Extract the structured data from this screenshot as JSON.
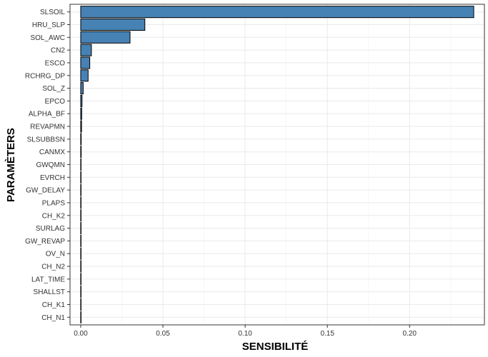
{
  "chart_data": {
    "type": "bar",
    "orientation": "horizontal",
    "title": "",
    "xlabel": "SENSIBILITÉ",
    "ylabel": "PARAMÈTERS",
    "xlim": [
      -0.0065,
      0.2455
    ],
    "x_ticks": [
      0.0,
      0.05,
      0.1,
      0.15,
      0.2
    ],
    "x_tick_labels": [
      "0.00",
      "0.05",
      "0.10",
      "0.15",
      "0.20"
    ],
    "grid": true,
    "legend": "none",
    "bar_color": "#4682B4",
    "bar_outline_color": "#000000",
    "categories": [
      "SLSOIL",
      "HRU_SLP",
      "SOL_AWC",
      "CN2",
      "ESCO",
      "RCHRG_DP",
      "SOL_Z",
      "EPCO",
      "ALPHA_BF",
      "REVAPMN",
      "SLSUBBSN",
      "CANMX",
      "GWQMN",
      "EVRCH",
      "GW_DELAY",
      "PLAPS",
      "CH_K2",
      "SURLAG",
      "GW_REVAP",
      "OV_N",
      "CH_N2",
      "LAT_TIME",
      "SHALLST",
      "CH_K1",
      "CH_N1"
    ],
    "values": [
      0.239,
      0.039,
      0.03,
      0.0065,
      0.0055,
      0.0045,
      0.0015,
      0.0008,
      0.0006,
      0.0005,
      0.0003,
      0.0003,
      0.0002,
      0.0002,
      0.0002,
      0.0002,
      0.0001,
      0.0001,
      0.0001,
      0.0001,
      0.0001,
      0.0001,
      0.0001,
      0.0001,
      0.0001
    ]
  }
}
